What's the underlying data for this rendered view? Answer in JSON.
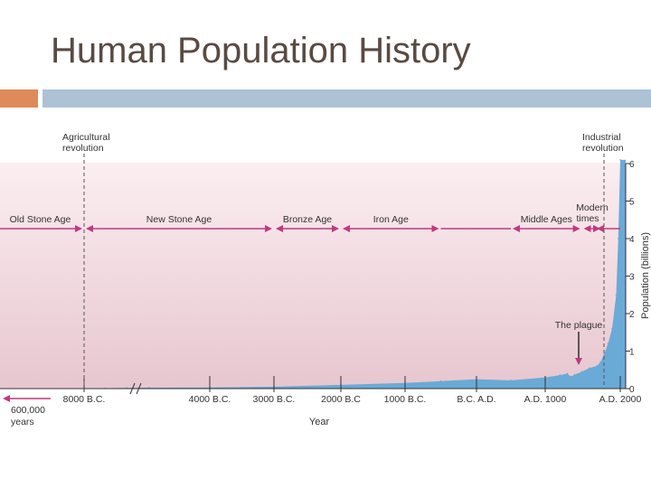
{
  "page": {
    "title": "Human Population History"
  },
  "colors": {
    "accent_left": "#df8a5a",
    "accent_right": "#aec2d5",
    "population_fill": "#6aaad6",
    "era_arrows": "#c2387e",
    "background_top": "#fbeef1",
    "background_bottom": "#e7c6cf"
  },
  "chart_data": {
    "type": "area",
    "title": "",
    "xlabel": "Year",
    "ylabel": "Population (billions)",
    "ylim": [
      0,
      6
    ],
    "y_ticks": [
      0,
      1,
      2,
      3,
      4,
      5,
      6
    ],
    "x_ticks": [
      {
        "label": "8000 B.C.",
        "year": -8000
      },
      {
        "label": "4000 B.C.",
        "year": -4000
      },
      {
        "label": "3000 B.C.",
        "year": -3000
      },
      {
        "label": "2000 B.C",
        "year": -2000
      },
      {
        "label": "1000 B.C.",
        "year": -1000
      },
      {
        "label": "B.C. A.D.",
        "year": 0
      },
      {
        "label": "A.D. 1000",
        "year": 1000
      },
      {
        "label": "A.D. 2000",
        "year": 2000
      }
    ],
    "axis_break": true,
    "left_arrow_label": [
      "600,000",
      "years"
    ],
    "series": [
      {
        "values": [
          {
            "year": -8000,
            "population": 0.005
          },
          {
            "year": -7000,
            "population": 0.01
          },
          {
            "year": -6000,
            "population": 0.02
          },
          {
            "year": -5000,
            "population": 0.025
          },
          {
            "year": -4000,
            "population": 0.03
          },
          {
            "year": -3000,
            "population": 0.05
          },
          {
            "year": -2000,
            "population": 0.1
          },
          {
            "year": -1000,
            "population": 0.15
          },
          {
            "year": -500,
            "population": 0.2
          },
          {
            "year": 0,
            "population": 0.25
          },
          {
            "year": 500,
            "population": 0.22
          },
          {
            "year": 1000,
            "population": 0.3
          },
          {
            "year": 1200,
            "population": 0.36
          },
          {
            "year": 1300,
            "population": 0.4
          },
          {
            "year": 1350,
            "population": 0.32
          },
          {
            "year": 1400,
            "population": 0.37
          },
          {
            "year": 1500,
            "population": 0.45
          },
          {
            "year": 1600,
            "population": 0.55
          },
          {
            "year": 1700,
            "population": 0.6
          },
          {
            "year": 1750,
            "population": 0.7
          },
          {
            "year": 1800,
            "population": 0.9
          },
          {
            "year": 1850,
            "population": 1.2
          },
          {
            "year": 1900,
            "population": 1.6
          },
          {
            "year": 1950,
            "population": 2.5
          },
          {
            "year": 1975,
            "population": 4.0
          },
          {
            "year": 2000,
            "population": 6.1
          }
        ]
      }
    ],
    "eras": [
      {
        "label": "Old Stone Age",
        "from": "600,000 years",
        "to": -8000
      },
      {
        "label": "New Stone Age",
        "from": -8000,
        "to": -3000
      },
      {
        "label": "Bronze Age",
        "from": -3000,
        "to": -2000
      },
      {
        "label": "Iron Age",
        "from": -2000,
        "to": -500
      },
      {
        "label": "Middle Ages",
        "from": 500,
        "to": 1500
      },
      {
        "label": "Modern times",
        "from": 1500,
        "to": 1800
      }
    ],
    "annotations": [
      {
        "label": "Agricultural revolution",
        "year": -8000
      },
      {
        "label": "Industrial revolution",
        "year": 1800
      },
      {
        "label": "The plague",
        "year": 1350
      }
    ]
  }
}
